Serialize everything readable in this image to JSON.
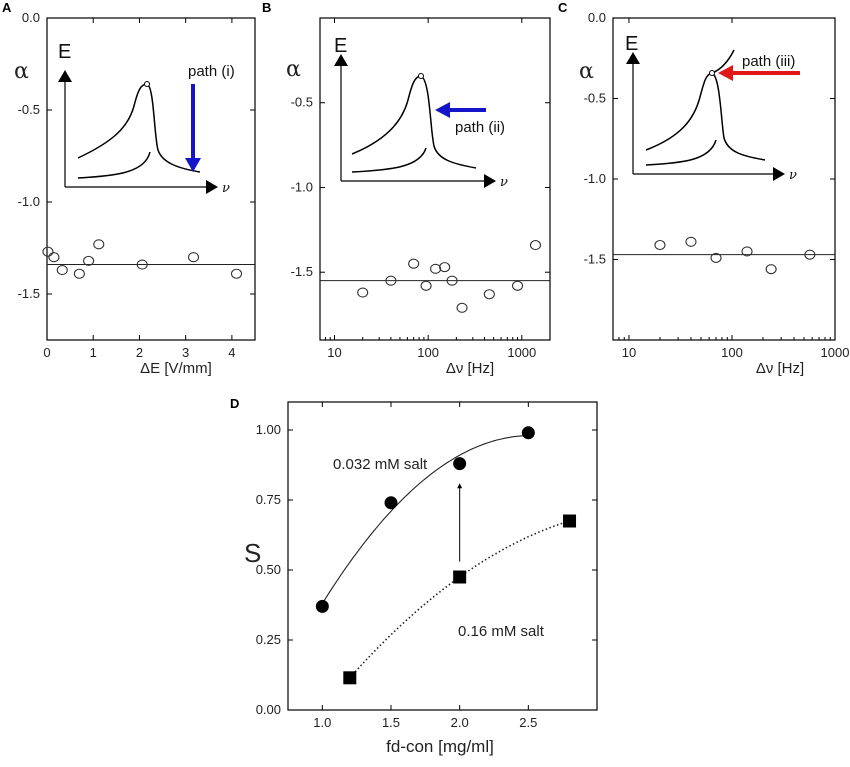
{
  "figure": {
    "panel_labels": [
      "A",
      "B",
      "C",
      "D"
    ]
  },
  "chart_data": [
    {
      "panel": "A",
      "type": "scatter",
      "xlabel": "ΔE  [V/mm]",
      "ylabel": "α",
      "xlim": [
        0,
        4.5
      ],
      "ylim": [
        -1.75,
        0.0
      ],
      "xticks": [
        0,
        1,
        2,
        3,
        4
      ],
      "yticks": [
        0.0,
        -0.5,
        -1.0,
        -1.5
      ],
      "ytick_labels": [
        "0.0",
        "-0.5",
        "-1.0",
        "-1.5"
      ],
      "xscale": "linear",
      "fit_line_y": -1.34,
      "x": [
        0.02,
        0.15,
        0.33,
        0.7,
        0.9,
        1.12,
        2.06,
        3.17,
        4.1
      ],
      "y": [
        -1.27,
        -1.3,
        -1.37,
        -1.39,
        -1.32,
        -1.23,
        -1.34,
        -1.3,
        -1.39
      ],
      "marker": "open-circle",
      "inset": {
        "y_letter": "E",
        "x_letter": "ν",
        "path_label": "path (i)",
        "arrow_color": "#1414c8",
        "arrow_direction": "down"
      }
    },
    {
      "panel": "B",
      "type": "scatter",
      "xlabel": "Δν [Hz]",
      "ylabel": "α",
      "xlim": [
        7,
        2000
      ],
      "ylim": [
        -1.9,
        0.0
      ],
      "xticks": [
        10,
        100,
        1000
      ],
      "xtick_labels": [
        "10",
        "100",
        "1000"
      ],
      "yticks": [
        -0.5,
        -1.0,
        -1.5
      ],
      "ytick_labels": [
        "-0.5",
        "-1.0",
        "-1.5"
      ],
      "xscale": "log",
      "fit_line_y": -1.55,
      "x": [
        20,
        40,
        70,
        95,
        120,
        150,
        180,
        230,
        450,
        900,
        1400
      ],
      "y": [
        -1.62,
        -1.55,
        -1.45,
        -1.58,
        -1.48,
        -1.47,
        -1.55,
        -1.71,
        -1.63,
        -1.58,
        -1.34
      ],
      "marker": "open-circle",
      "inset": {
        "y_letter": "E",
        "x_letter": "ν",
        "path_label": "path (ii)",
        "arrow_color": "#1414c8",
        "arrow_direction": "left"
      }
    },
    {
      "panel": "C",
      "type": "scatter",
      "xlabel": "Δν [Hz]",
      "ylabel": "α",
      "xlim": [
        7,
        1000
      ],
      "ylim": [
        -2.0,
        0.0
      ],
      "xticks": [
        10,
        100,
        1000
      ],
      "xtick_labels": [
        "10",
        "100",
        "1000"
      ],
      "yticks": [
        0.0,
        -0.5,
        -1.0,
        -1.5
      ],
      "ytick_labels": [
        "0.0",
        "-0.5",
        "-1.0",
        "-1.5"
      ],
      "xscale": "log",
      "fit_line_y": -1.47,
      "x": [
        20,
        40,
        70,
        140,
        240,
        570
      ],
      "y": [
        -1.41,
        -1.39,
        -1.49,
        -1.45,
        -1.56,
        -1.47
      ],
      "marker": "open-circle",
      "inset": {
        "y_letter": "E",
        "x_letter": "ν",
        "path_label": "path (iii)",
        "arrow_color": "#e01818",
        "arrow_direction": "left"
      }
    },
    {
      "panel": "D",
      "type": "scatter",
      "xlabel": "fd-con [mg/ml]",
      "ylabel": "S",
      "xlim": [
        0.75,
        3.0
      ],
      "ylim": [
        0.0,
        1.1
      ],
      "xticks": [
        1.0,
        1.5,
        2.0,
        2.5
      ],
      "xtick_labels": [
        "1.0",
        "1.5",
        "2.0",
        "2.5"
      ],
      "yticks": [
        0.0,
        0.25,
        0.5,
        0.75,
        1.0
      ],
      "ytick_labels": [
        "0.00",
        "0.25",
        "0.50",
        "0.75",
        "1.00"
      ],
      "series": [
        {
          "name": "0.032 mM salt",
          "marker": "filled-circle",
          "line": "solid",
          "x": [
            1.0,
            1.5,
            2.0,
            2.5
          ],
          "y": [
            0.37,
            0.74,
            0.88,
            0.99
          ]
        },
        {
          "name": "0.16 mM salt",
          "marker": "filled-square",
          "line": "dotted",
          "x": [
            1.2,
            2.0,
            2.8
          ],
          "y": [
            0.115,
            0.475,
            0.675
          ]
        }
      ],
      "annotation": {
        "type": "arrow",
        "from_x": 2.0,
        "from_y": 0.53,
        "to_x": 2.0,
        "to_y": 0.81
      }
    }
  ]
}
